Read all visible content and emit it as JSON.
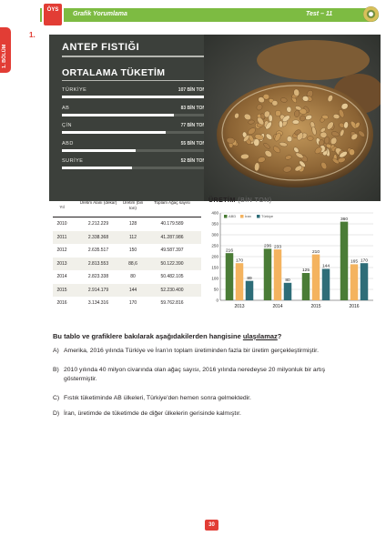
{
  "header": {
    "badge": "ÖYS",
    "section_title": "Grafik Yorumlama",
    "test_label": "Test – 11"
  },
  "side_tab": {
    "label": "1. BÖLÜM"
  },
  "question_number": "1.",
  "infographic": {
    "title": "ANTEP FISTIĞI",
    "subtitle": "ORTALAMA TÜKETİM",
    "consumption": [
      {
        "name": "TÜRKİYE",
        "value_label": "107 BİN TON",
        "value": 107
      },
      {
        "name": "AB",
        "value_label": "83 BİN TON",
        "value": 83
      },
      {
        "name": "ÇİN",
        "value_label": "77 BİN TON",
        "value": 77
      },
      {
        "name": "ABD",
        "value_label": "55 BİN TON",
        "value": 55
      },
      {
        "name": "SURİYE",
        "value_label": "52 BİN TON",
        "value": 52
      }
    ],
    "consumption_max": 107
  },
  "table": {
    "headers": [
      "Yıl",
      "Üretim Alanı (dekar)",
      "Üretim (bin ton)",
      "Toplam Ağaç sayısı"
    ],
    "rows": [
      [
        "2010",
        "2.212.229",
        "128",
        "40.179.589"
      ],
      [
        "2011",
        "2.338.368",
        "112",
        "41.287.986"
      ],
      [
        "2012",
        "2.635.517",
        "150",
        "49.587.397"
      ],
      [
        "2013",
        "2.813.553",
        "88,6",
        "50.122.390"
      ],
      [
        "2014",
        "2.823.338",
        "80",
        "50.482.105"
      ],
      [
        "2015",
        "2.914.179",
        "144",
        "52.230.400"
      ],
      [
        "2016",
        "3.134.316",
        "170",
        "59.762.816"
      ]
    ]
  },
  "chart_data": {
    "type": "bar",
    "title": "ÜRETİM",
    "unit": "(BİN TON)",
    "categories": [
      "2013",
      "2014",
      "2015",
      "2016"
    ],
    "series": [
      {
        "name": "ABD",
        "color": "#4a7c36",
        "values": [
          216,
          236,
          125,
          360
        ]
      },
      {
        "name": "İran",
        "color": "#f4b35f",
        "values": [
          170,
          233,
          210,
          165
        ]
      },
      {
        "name": "Türkiye",
        "color": "#2e6d78",
        "values": [
          89,
          80,
          144,
          170
        ]
      }
    ],
    "ylim": [
      0,
      400
    ],
    "yticks": [
      0,
      50,
      100,
      150,
      200,
      250,
      300,
      350,
      400
    ],
    "grid": true,
    "legend": "top-left"
  },
  "question": {
    "stem_prefix": "Bu tablo ve grafiklere bakılarak aşağıdakilerden hangisine ",
    "stem_emph": "ulaşılamaz",
    "stem_suffix": "?",
    "options": [
      {
        "label": "A)",
        "text": "Amerika, 2016 yılında Türkiye ve İran'ın toplam üretiminden fazla bir üretim gerçekleştirmiştir.",
        "cont": ""
      },
      {
        "label": "B)",
        "text": "2010 yılında 40 milyon civarında olan ağaç sayısı, 2016 yılında neredeyse 20 milyonluk bir artış",
        "cont": "göstermiştir."
      },
      {
        "label": "C)",
        "text": "Fıstık tüketiminde AB ülkeleri, Türkiye'den hemen sonra gelmektedir.",
        "cont": ""
      },
      {
        "label": "D)",
        "text": "İran, üretimde de tüketimde de diğer ülkelerin gerisinde kalmıştır.",
        "cont": ""
      }
    ]
  },
  "page_number": "30"
}
